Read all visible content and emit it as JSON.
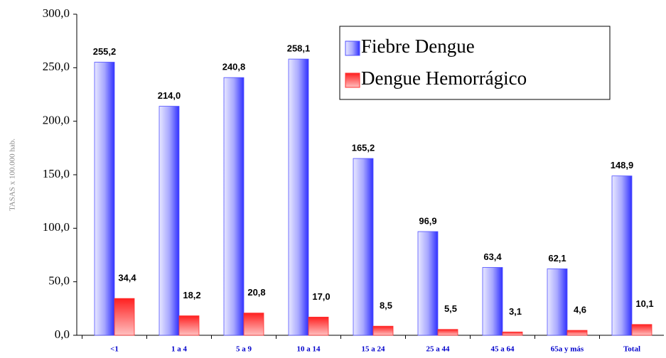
{
  "chart_data": {
    "type": "bar",
    "y_label": "TASAS x 100.000 hab.",
    "categories": [
      "<1",
      "1 a 4",
      "5 a 9",
      "10 a 14",
      "15 a 24",
      "25 a 44",
      "45 a 64",
      "65a y más",
      "Total"
    ],
    "series": [
      {
        "name": "Fiebre Dengue",
        "color": "#5050ff",
        "values": [
          255.2,
          214.0,
          240.8,
          258.1,
          165.2,
          96.9,
          63.4,
          62.1,
          148.9
        ],
        "value_labels": [
          "255,2",
          "214,0",
          "240,8",
          "258,1",
          "165,2",
          "96,9",
          "63,4",
          "62,1",
          "148,9"
        ]
      },
      {
        "name": "Dengue Hemorrágico",
        "color": "#ff3030",
        "values": [
          34.4,
          18.2,
          20.8,
          17.0,
          8.5,
          5.5,
          3.1,
          4.6,
          10.1
        ],
        "value_labels": [
          "34,4",
          "18,2",
          "20,8",
          "17,0",
          "8,5",
          "5,5",
          "3,1",
          "4,6",
          "10,1"
        ]
      }
    ],
    "ylim": [
      0,
      300
    ],
    "yticks": [
      {
        "value": 0,
        "label": "0,0"
      },
      {
        "value": 50,
        "label": "50,0"
      },
      {
        "value": 100,
        "label": "100,0"
      },
      {
        "value": 150,
        "label": "150,0"
      },
      {
        "value": 200,
        "label": "200,0"
      },
      {
        "value": 250,
        "label": "250,0"
      },
      {
        "value": 300,
        "label": "300,0"
      }
    ],
    "grid": false,
    "legend": "top-right"
  }
}
